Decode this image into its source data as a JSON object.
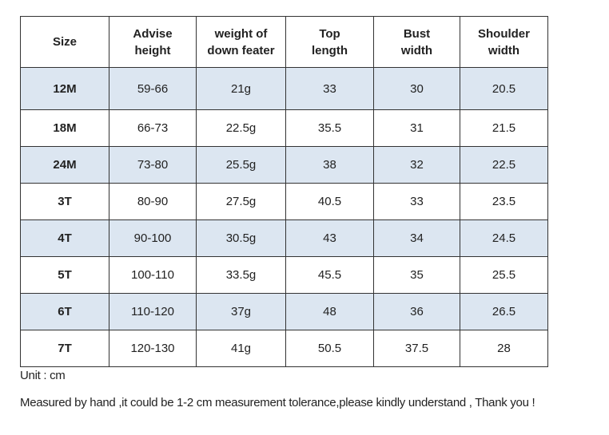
{
  "table": {
    "header": [
      [
        "Size"
      ],
      [
        "Advise",
        "height"
      ],
      [
        "weight of",
        "down feater"
      ],
      [
        "Top",
        "length"
      ],
      [
        "Bust",
        "width"
      ],
      [
        "Shoulder",
        "width"
      ]
    ],
    "rows": [
      [
        "12M",
        "59-66",
        "21g",
        "33",
        "30",
        "20.5"
      ],
      [
        "18M",
        "66-73",
        "22.5g",
        "35.5",
        "31",
        "21.5"
      ],
      [
        "24M",
        "73-80",
        "25.5g",
        "38",
        "32",
        "22.5"
      ],
      [
        "3T",
        "80-90",
        "27.5g",
        "40.5",
        "33",
        "23.5"
      ],
      [
        "4T",
        "90-100",
        "30.5g",
        "43",
        "34",
        "24.5"
      ],
      [
        "5T",
        "100-110",
        "33.5g",
        "45.5",
        "35",
        "25.5"
      ],
      [
        "6T",
        "110-120",
        "37g",
        "48",
        "36",
        "26.5"
      ],
      [
        "7T",
        "120-130",
        "41g",
        "50.5",
        "37.5",
        "28"
      ]
    ]
  },
  "notes": {
    "unit": "Unit : cm",
    "tolerance": "Measured by hand ,it could be 1-2 cm measurement tolerance,please kindly understand , Thank you !"
  }
}
